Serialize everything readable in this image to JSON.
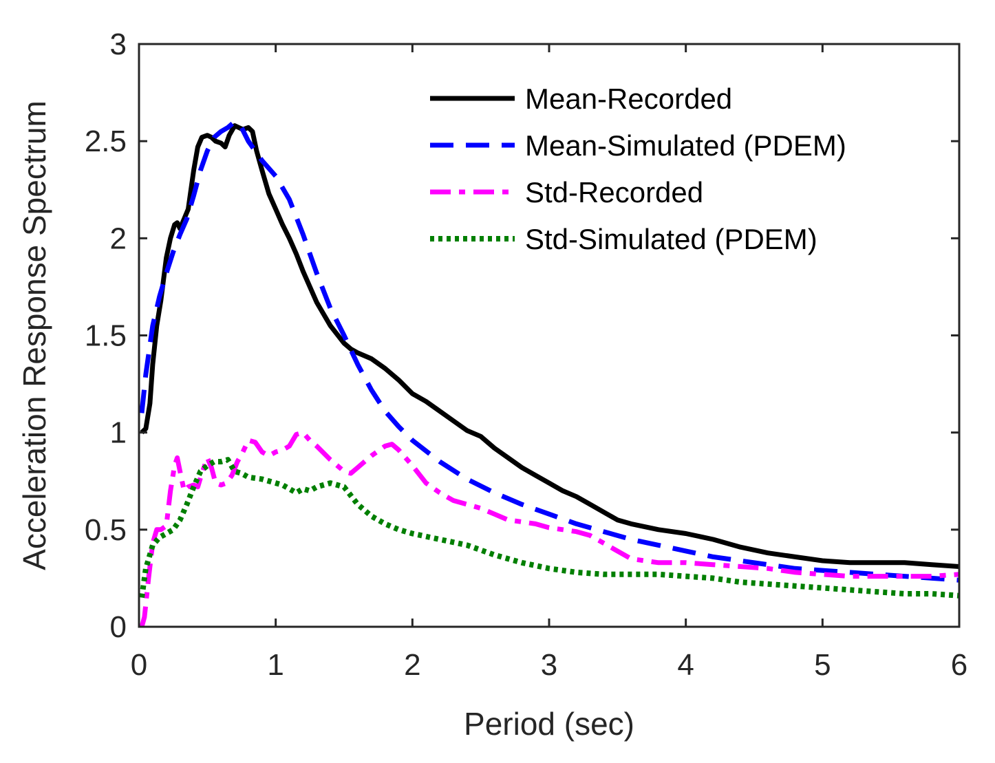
{
  "chart_data": {
    "type": "line",
    "title": "",
    "xlabel": "Period (sec)",
    "ylabel": "Acceleration Response Spectrum",
    "xlim": [
      0,
      6
    ],
    "ylim": [
      0,
      3
    ],
    "xticks": [
      "0",
      "1",
      "2",
      "3",
      "4",
      "5",
      "6"
    ],
    "yticks": [
      "0",
      "0.5",
      "1",
      "1.5",
      "2",
      "2.5",
      "3"
    ],
    "grid": false,
    "legend_position": "top-right",
    "series": [
      {
        "name": "Mean-Recorded",
        "color": "#000000",
        "style": "solid",
        "x": [
          0.02,
          0.05,
          0.08,
          0.1,
          0.13,
          0.16,
          0.2,
          0.23,
          0.26,
          0.28,
          0.3,
          0.33,
          0.36,
          0.4,
          0.43,
          0.46,
          0.5,
          0.53,
          0.56,
          0.6,
          0.63,
          0.66,
          0.7,
          0.73,
          0.76,
          0.8,
          0.83,
          0.86,
          0.9,
          0.95,
          1.0,
          1.05,
          1.1,
          1.15,
          1.2,
          1.3,
          1.4,
          1.5,
          1.55,
          1.6,
          1.7,
          1.8,
          1.9,
          2.0,
          2.1,
          2.2,
          2.3,
          2.4,
          2.5,
          2.6,
          2.7,
          2.8,
          2.9,
          3.0,
          3.1,
          3.2,
          3.3,
          3.4,
          3.5,
          3.6,
          3.8,
          4.0,
          4.2,
          4.4,
          4.6,
          4.8,
          5.0,
          5.2,
          5.4,
          5.6,
          5.8,
          6.0
        ],
        "y": [
          1.0,
          1.02,
          1.15,
          1.35,
          1.55,
          1.68,
          1.9,
          2.0,
          2.07,
          2.08,
          2.05,
          2.1,
          2.15,
          2.35,
          2.47,
          2.52,
          2.53,
          2.52,
          2.5,
          2.49,
          2.47,
          2.53,
          2.58,
          2.57,
          2.56,
          2.57,
          2.55,
          2.45,
          2.35,
          2.23,
          2.15,
          2.07,
          2.0,
          1.92,
          1.83,
          1.67,
          1.55,
          1.46,
          1.43,
          1.41,
          1.38,
          1.33,
          1.27,
          1.2,
          1.16,
          1.11,
          1.06,
          1.01,
          0.98,
          0.92,
          0.87,
          0.82,
          0.78,
          0.74,
          0.7,
          0.67,
          0.63,
          0.59,
          0.55,
          0.53,
          0.5,
          0.48,
          0.45,
          0.41,
          0.38,
          0.36,
          0.34,
          0.33,
          0.33,
          0.33,
          0.32,
          0.31
        ]
      },
      {
        "name": "Mean-Simulated (PDEM)",
        "color": "#0000ff",
        "style": "dashed",
        "x": [
          0.02,
          0.05,
          0.1,
          0.15,
          0.2,
          0.25,
          0.3,
          0.35,
          0.4,
          0.45,
          0.5,
          0.55,
          0.6,
          0.65,
          0.7,
          0.75,
          0.8,
          0.9,
          1.0,
          1.1,
          1.2,
          1.3,
          1.4,
          1.5,
          1.6,
          1.7,
          1.8,
          1.9,
          2.0,
          2.2,
          2.4,
          2.6,
          2.8,
          3.0,
          3.2,
          3.4,
          3.6,
          3.8,
          4.0,
          4.2,
          4.4,
          4.6,
          4.8,
          5.0,
          5.2,
          5.4,
          5.6,
          5.8,
          6.0
        ],
        "y": [
          1.1,
          1.3,
          1.55,
          1.7,
          1.82,
          1.93,
          2.02,
          2.1,
          2.22,
          2.35,
          2.45,
          2.52,
          2.55,
          2.57,
          2.6,
          2.57,
          2.5,
          2.4,
          2.32,
          2.2,
          2.02,
          1.82,
          1.64,
          1.5,
          1.35,
          1.22,
          1.11,
          1.03,
          0.96,
          0.85,
          0.76,
          0.69,
          0.63,
          0.58,
          0.53,
          0.49,
          0.45,
          0.42,
          0.39,
          0.36,
          0.34,
          0.32,
          0.3,
          0.29,
          0.28,
          0.27,
          0.26,
          0.25,
          0.24
        ]
      },
      {
        "name": "Std-Recorded",
        "color": "#ff00ff",
        "style": "dash-dot",
        "x": [
          0.02,
          0.04,
          0.07,
          0.1,
          0.13,
          0.16,
          0.2,
          0.23,
          0.26,
          0.28,
          0.3,
          0.33,
          0.36,
          0.4,
          0.43,
          0.46,
          0.5,
          0.53,
          0.56,
          0.6,
          0.64,
          0.68,
          0.72,
          0.76,
          0.8,
          0.85,
          0.9,
          0.95,
          1.0,
          1.05,
          1.1,
          1.15,
          1.2,
          1.25,
          1.3,
          1.4,
          1.5,
          1.55,
          1.6,
          1.7,
          1.8,
          1.85,
          1.9,
          2.0,
          2.1,
          2.2,
          2.3,
          2.4,
          2.5,
          2.6,
          2.7,
          2.8,
          2.9,
          3.0,
          3.1,
          3.2,
          3.3,
          3.4,
          3.5,
          3.6,
          3.8,
          4.0,
          4.2,
          4.4,
          4.6,
          4.8,
          5.0,
          5.2,
          5.4,
          5.6,
          5.8,
          6.0
        ],
        "y": [
          0.0,
          0.05,
          0.25,
          0.43,
          0.5,
          0.5,
          0.52,
          0.7,
          0.83,
          0.87,
          0.8,
          0.7,
          0.72,
          0.73,
          0.72,
          0.79,
          0.87,
          0.82,
          0.74,
          0.73,
          0.74,
          0.78,
          0.85,
          0.9,
          0.96,
          0.95,
          0.9,
          0.88,
          0.9,
          0.91,
          0.93,
          0.99,
          1.0,
          0.96,
          0.93,
          0.86,
          0.8,
          0.79,
          0.82,
          0.88,
          0.93,
          0.94,
          0.91,
          0.83,
          0.74,
          0.69,
          0.65,
          0.63,
          0.61,
          0.58,
          0.55,
          0.54,
          0.53,
          0.51,
          0.5,
          0.49,
          0.47,
          0.43,
          0.39,
          0.35,
          0.33,
          0.33,
          0.32,
          0.31,
          0.3,
          0.28,
          0.27,
          0.26,
          0.26,
          0.26,
          0.26,
          0.27
        ]
      },
      {
        "name": "Std-Simulated (PDEM)",
        "color": "#007f00",
        "style": "dotted",
        "x": [
          0.02,
          0.05,
          0.1,
          0.15,
          0.2,
          0.25,
          0.3,
          0.35,
          0.4,
          0.45,
          0.5,
          0.55,
          0.6,
          0.65,
          0.7,
          0.75,
          0.8,
          0.9,
          1.0,
          1.05,
          1.1,
          1.15,
          1.2,
          1.25,
          1.3,
          1.35,
          1.4,
          1.5,
          1.6,
          1.7,
          1.8,
          1.9,
          2.0,
          2.2,
          2.4,
          2.6,
          2.8,
          3.0,
          3.2,
          3.4,
          3.6,
          3.8,
          4.0,
          4.2,
          4.4,
          4.6,
          4.8,
          5.0,
          5.2,
          5.4,
          5.6,
          5.8,
          6.0
        ],
        "y": [
          0.15,
          0.3,
          0.42,
          0.46,
          0.48,
          0.5,
          0.55,
          0.63,
          0.72,
          0.8,
          0.83,
          0.85,
          0.85,
          0.86,
          0.8,
          0.79,
          0.77,
          0.76,
          0.74,
          0.73,
          0.71,
          0.69,
          0.71,
          0.7,
          0.72,
          0.73,
          0.74,
          0.72,
          0.63,
          0.57,
          0.53,
          0.5,
          0.48,
          0.45,
          0.42,
          0.37,
          0.33,
          0.3,
          0.28,
          0.27,
          0.27,
          0.27,
          0.26,
          0.25,
          0.23,
          0.22,
          0.21,
          0.2,
          0.19,
          0.18,
          0.17,
          0.17,
          0.16
        ]
      }
    ]
  }
}
